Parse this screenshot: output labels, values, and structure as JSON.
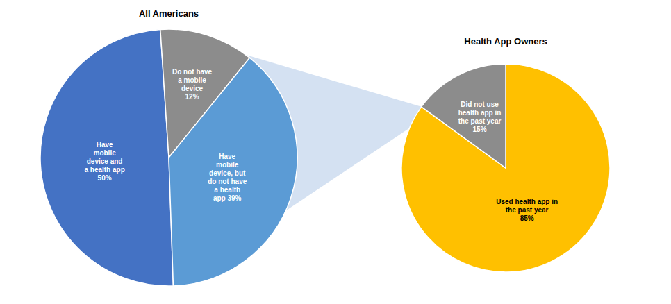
{
  "chart_data": [
    {
      "type": "pie",
      "title": "All Americans",
      "categories": [
        "Have\nmobile\ndevice and\na health app\n50%",
        "Do not have\na mobile\ndevice\n12%",
        "Have\nmobile\ndevice, but\ndo not have\na health\napp 39%"
      ],
      "values": [
        50,
        12,
        39
      ],
      "colors": [
        "#4472C4",
        "#8C8C8C",
        "#5B9BD5"
      ]
    },
    {
      "type": "pie",
      "title": "Health App Owners",
      "categories": [
        "Used health app in\nthe past year\n85%",
        "Did not use\nhealth app in\nthe past year\n15%"
      ],
      "values": [
        85,
        15
      ],
      "colors": [
        "#FFC000",
        "#8C8C8C"
      ]
    }
  ]
}
